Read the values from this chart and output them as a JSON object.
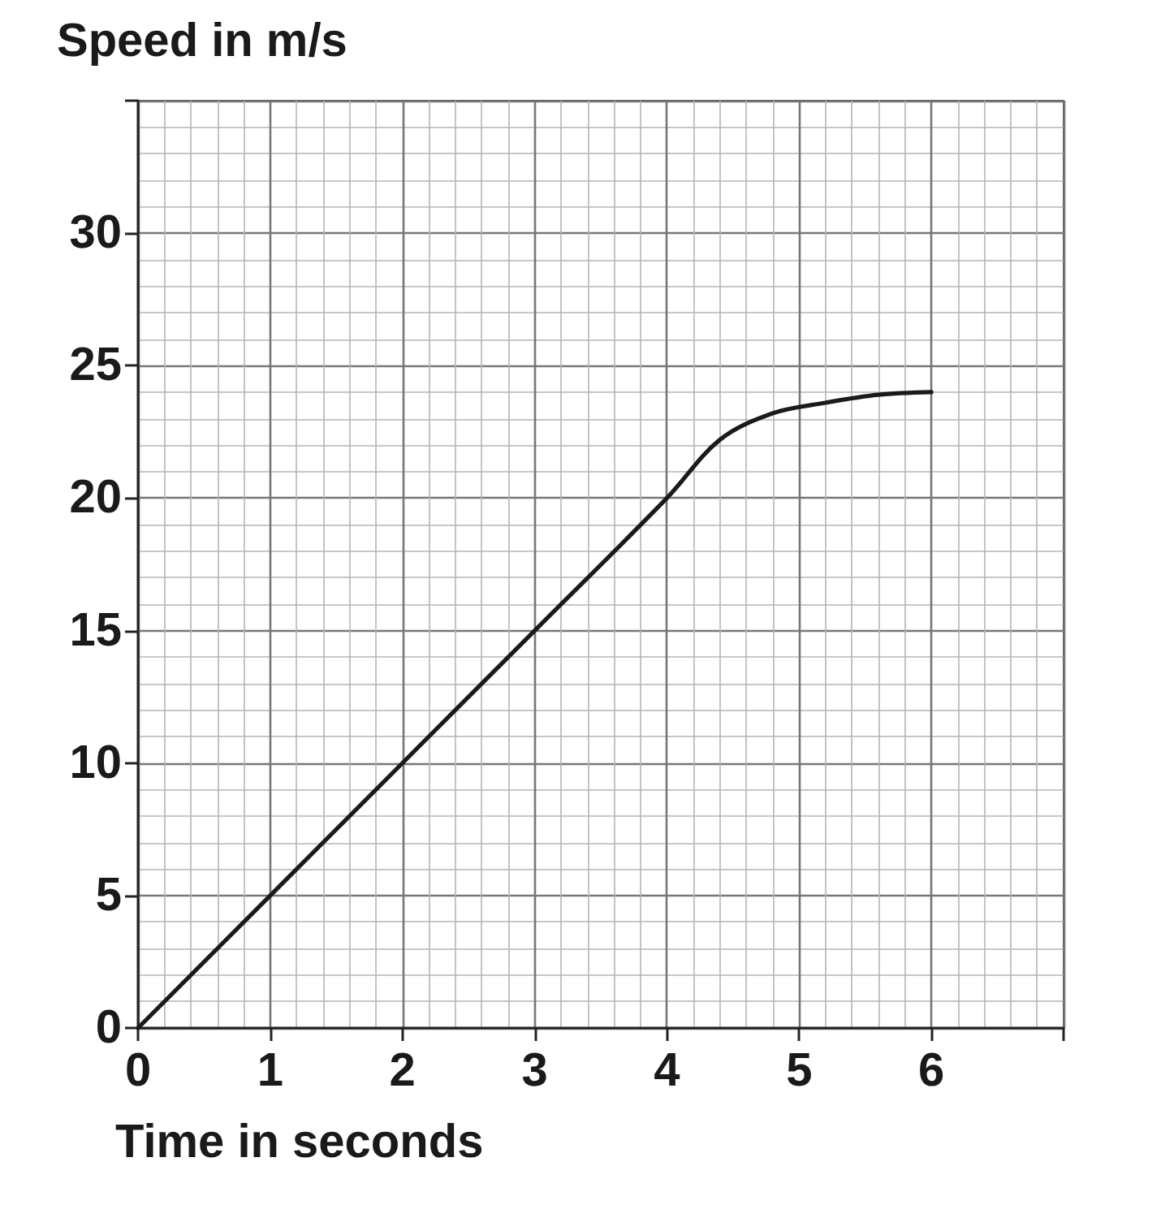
{
  "chart_data": {
    "type": "line",
    "xlabel": "Time in seconds",
    "ylabel": "Speed in m/s",
    "x": [
      0,
      1,
      2,
      3,
      4,
      4.4,
      4.8,
      5.2,
      5.6,
      6
    ],
    "series": [
      {
        "color": "#1a1a1a",
        "values": [
          0,
          5,
          10,
          15,
          20,
          22.2,
          23.2,
          23.6,
          23.9,
          24
        ]
      }
    ],
    "xlim": [
      0,
      7
    ],
    "xticks": [
      0,
      1,
      2,
      3,
      4,
      5,
      6
    ],
    "ylim": [
      0,
      35
    ],
    "yticks": [
      0,
      5,
      10,
      15,
      20,
      25,
      30
    ],
    "grid": true,
    "marker": "none",
    "line_style": "solid"
  }
}
